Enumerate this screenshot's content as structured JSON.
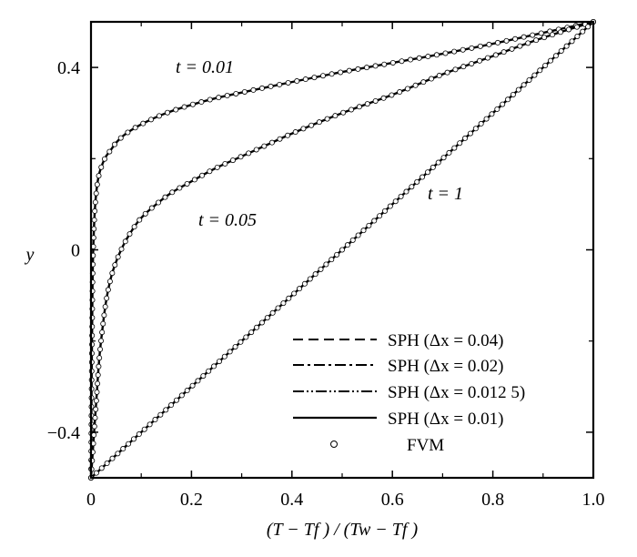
{
  "chart_data": {
    "type": "line",
    "xlabel": "(T − Tf ) / (Tw − Tf )",
    "ylabel": "y",
    "xlim": [
      0,
      1
    ],
    "ylim": [
      -0.5,
      0.5
    ],
    "xticks": [
      0,
      0.2,
      0.4,
      0.6,
      0.8,
      1.0
    ],
    "xtick_labels": [
      "0",
      "0.2",
      "0.4",
      "0.6",
      "0.8",
      "1.0"
    ],
    "yticks": [
      -0.4,
      0,
      0.4
    ],
    "ytick_labels": [
      "−0.4",
      "0",
      "0.4"
    ],
    "grid": false,
    "legend_position": "bottom-right",
    "legend": [
      {
        "label": "SPH (Δx = 0.04)",
        "style": "dashed"
      },
      {
        "label": "SPH (Δx = 0.02)",
        "style": "dashdot"
      },
      {
        "label": "SPH (Δx = 0.012 5)",
        "style": "dashdotdot"
      },
      {
        "label": "SPH (Δx = 0.01)",
        "style": "solid"
      },
      {
        "label": "FVM",
        "style": "circle"
      }
    ],
    "annotations": [
      {
        "text": "t = 0.01",
        "x": 0.175,
        "y": 0.4
      },
      {
        "text": "t = 0.05",
        "x": 0.22,
        "y": 0.13
      },
      {
        "text": "t = 1",
        "x": 0.7,
        "y": 0.24
      }
    ],
    "series": [
      {
        "t": 0.01,
        "x": [
          0,
          0.002,
          0.005,
          0.01,
          0.015,
          0.02,
          0.03,
          0.04,
          0.05,
          0.07,
          0.1,
          0.15,
          0.2,
          0.25,
          0.3,
          0.4,
          0.5,
          0.6,
          0.7,
          0.8,
          0.9,
          1.0
        ],
        "y": [
          -0.5,
          -0.2,
          0.02,
          0.12,
          0.16,
          0.18,
          0.205,
          0.22,
          0.235,
          0.255,
          0.275,
          0.3,
          0.318,
          0.333,
          0.345,
          0.368,
          0.39,
          0.41,
          0.43,
          0.452,
          0.476,
          0.5
        ]
      },
      {
        "t": 0.05,
        "x": [
          0,
          0.01,
          0.02,
          0.04,
          0.06,
          0.08,
          0.1,
          0.13,
          0.16,
          0.2,
          0.25,
          0.3,
          0.35,
          0.4,
          0.5,
          0.6,
          0.7,
          0.8,
          0.9,
          1.0
        ],
        "y": [
          -0.5,
          -0.34,
          -0.2,
          -0.06,
          0.0,
          0.04,
          0.07,
          0.1,
          0.125,
          0.15,
          0.18,
          0.205,
          0.23,
          0.255,
          0.3,
          0.34,
          0.385,
          0.425,
          0.465,
          0.5
        ]
      },
      {
        "t": 1,
        "x": [
          0,
          0.2,
          0.4,
          0.6,
          0.8,
          1.0
        ],
        "y": [
          -0.5,
          -0.3,
          -0.1,
          0.1,
          0.3,
          0.5
        ]
      }
    ]
  }
}
